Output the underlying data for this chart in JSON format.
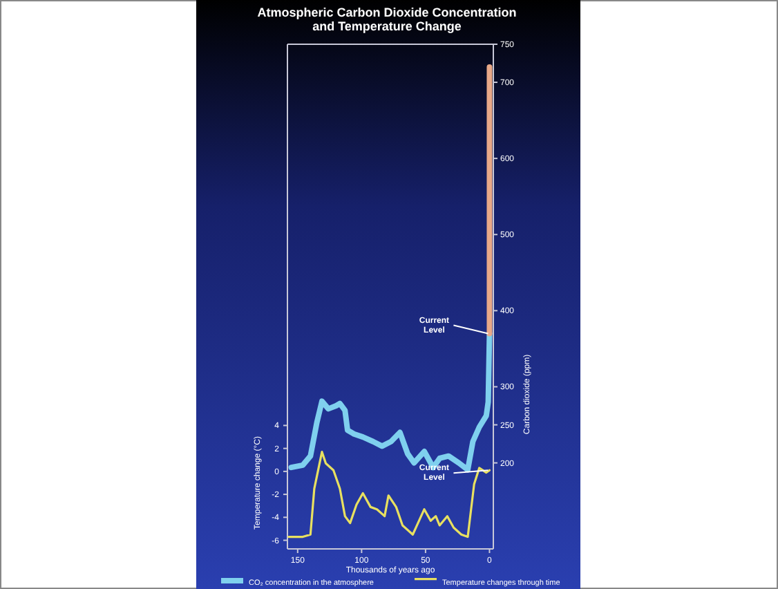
{
  "chart_data": {
    "type": "line",
    "title": "Atmospheric Carbon Dioxide Concentration and Temperature Change",
    "xlabel": "Thousands of years ago",
    "ylabel": "Temperature change (°C)",
    "y2label": "Carbon dioxide (ppm)",
    "xlim": [
      158,
      -3
    ],
    "xticks": [
      150,
      100,
      50,
      0
    ],
    "ylim": [
      -6.75,
      37.2
    ],
    "yticks": [
      -6,
      -4,
      -2,
      0,
      2,
      4
    ],
    "y2lim": [
      87,
      750
    ],
    "y2ticks": [
      200,
      250,
      300,
      400,
      500,
      600,
      700,
      750
    ],
    "legend": "bottom",
    "marker": "none",
    "grid": false,
    "series": [
      {
        "name": "CO₂ concentration in the atmosphere",
        "color": "#7fd0ee",
        "axis": "y2",
        "x": [
          155,
          146,
          140,
          135,
          131,
          126,
          120,
          117,
          113,
          111,
          106,
          99,
          91,
          84,
          77,
          70,
          64,
          59,
          51,
          44,
          39,
          32,
          24,
          17,
          13,
          8,
          2.5,
          1,
          0
        ],
        "values": [
          194,
          197,
          209,
          253,
          281,
          271,
          275,
          278,
          269,
          243,
          238,
          234,
          228,
          222,
          228,
          240,
          212,
          200,
          215,
          194,
          206,
          209,
          200,
          191,
          228,
          247,
          262,
          280,
          370
        ]
      },
      {
        "color": "#e8a888",
        "axis": "y2",
        "x": [
          0,
          0
        ],
        "values": [
          370,
          720
        ]
      },
      {
        "name": "Temperature changes through time",
        "color": "#e8e060",
        "x": [
          157,
          146,
          140,
          137,
          131,
          128,
          122,
          117,
          113,
          109,
          104,
          99,
          93,
          88,
          82,
          79,
          73,
          68,
          60,
          51,
          46,
          42,
          39,
          33,
          28,
          22,
          17,
          12,
          8,
          2.5,
          0
        ],
        "values": [
          -5.7,
          -5.7,
          -5.5,
          -1.5,
          1.7,
          0.7,
          0.1,
          -1.5,
          -3.9,
          -4.5,
          -2.9,
          -1.9,
          -3.1,
          -3.3,
          -3.9,
          -2.1,
          -3.1,
          -4.7,
          -5.5,
          -3.3,
          -4.3,
          -3.9,
          -4.7,
          -3.9,
          -4.9,
          -5.5,
          -5.7,
          -1.1,
          0.3,
          -0.1,
          0.1
        ]
      }
    ],
    "annotations": [
      {
        "text": "Current Level",
        "x": 0,
        "y": 12
      },
      {
        "text": "Current Level",
        "x": 0,
        "y": 0.1
      }
    ]
  }
}
